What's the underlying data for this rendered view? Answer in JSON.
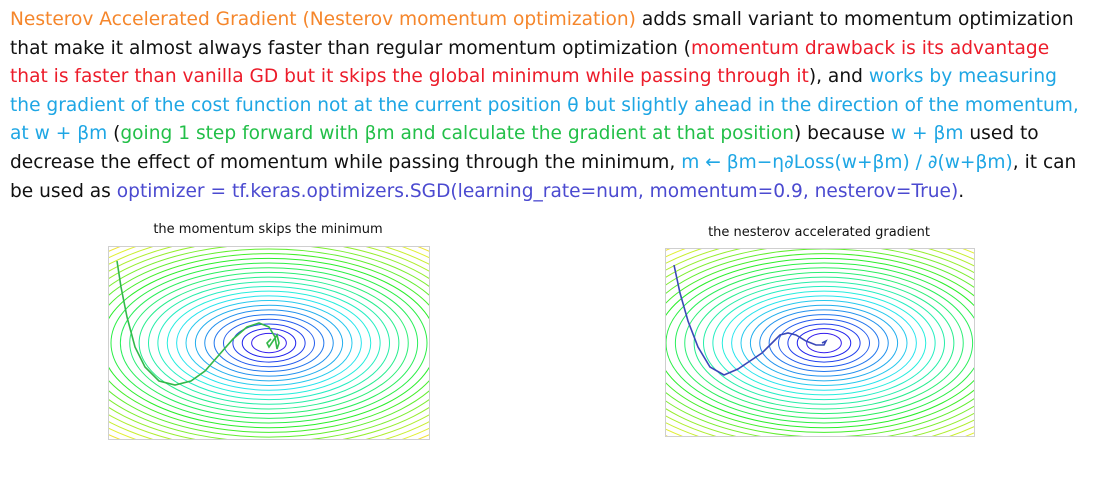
{
  "colors": {
    "orange": "#f5862b",
    "red": "#ec1c2a",
    "blue": "#1ea6e4",
    "green": "#22bf48",
    "purple": "#4b4ad0",
    "black": "#111111"
  },
  "paragraph": {
    "lines": [
      [
        {
          "text": "Nesterov Accelerated Gradient (Nesterov momentum optimization)",
          "color": "orange"
        },
        {
          "text": " adds small variant to momentum optimization",
          "color": "black"
        }
      ],
      [
        {
          "text": "that make it almost always faster than regular momentum optimization (",
          "color": "black"
        },
        {
          "text": "momentum drawback is its advantage",
          "color": "red"
        }
      ],
      [
        {
          "text": "that is faster than vanilla GD but it skips the global minimum while passing through it",
          "color": "red"
        },
        {
          "text": "), and ",
          "color": "black"
        },
        {
          "text": "works by measuring",
          "color": "blue"
        }
      ],
      [
        {
          "text": "the gradient of the cost function not at the current position θ but slightly ahead in the direction of the momentum,",
          "color": "blue"
        }
      ],
      [
        {
          "text": "at w + βm",
          "color": "blue"
        },
        {
          "text": " (",
          "color": "black"
        },
        {
          "text": "going 1 step forward with βm and calculate the gradient at that position",
          "color": "green"
        },
        {
          "text": ") because ",
          "color": "black"
        },
        {
          "text": "w + βm",
          "color": "blue"
        },
        {
          "text": " used to",
          "color": "black"
        }
      ],
      [
        {
          "text": "decrease the effect of momentum while passing through the minimum, ",
          "color": "black"
        },
        {
          "text": "m ← βm−η∂Loss(w+βm) / ∂(w+βm)",
          "color": "blue"
        },
        {
          "text": ", it can",
          "color": "black"
        }
      ],
      [
        {
          "text": "be used as ",
          "color": "black"
        },
        {
          "text": "optimizer = tf.keras.optimizers.SGD(learning_rate=num, momentum=0.9, nesterov=True)",
          "color": "purple"
        },
        {
          "text": ".",
          "color": "black"
        }
      ]
    ]
  },
  "figures": [
    {
      "title": "the momentum skips the minimum",
      "path_color": "#33b84a",
      "path_kind": "momentum"
    },
    {
      "title": "the nesterov accelerated gradient",
      "path_color": "#3a48b8",
      "path_kind": "nesterov"
    }
  ]
}
